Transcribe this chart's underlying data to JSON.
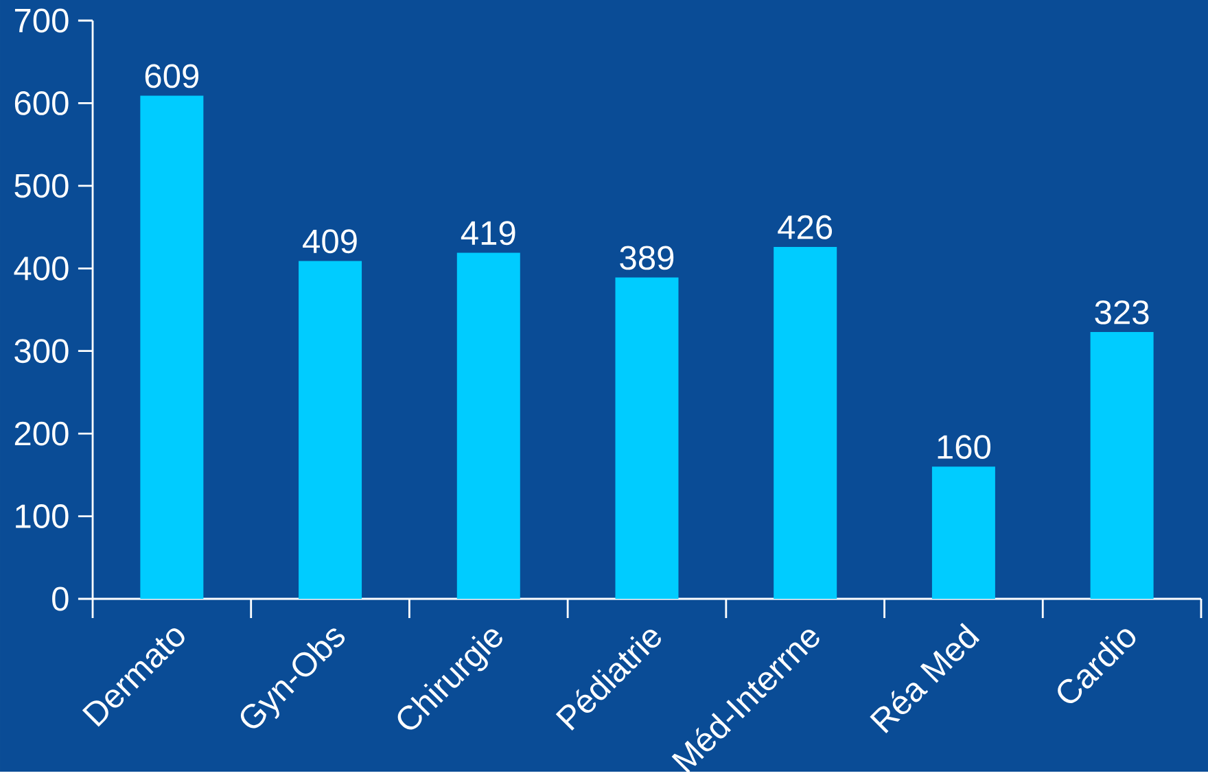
{
  "chart_data": {
    "type": "bar",
    "categories": [
      "Dermato",
      "Gyn-Obs",
      "Chirurgie",
      "Pédiatrie",
      "Méd-Interrne",
      "Réa Med",
      "Cardio"
    ],
    "values": [
      609,
      409,
      419,
      389,
      426,
      160,
      323
    ],
    "color": "#00ccff",
    "ylim": [
      0,
      700
    ],
    "yticks": [
      0,
      100,
      200,
      300,
      400,
      500,
      600,
      700
    ],
    "data_labels": true
  }
}
